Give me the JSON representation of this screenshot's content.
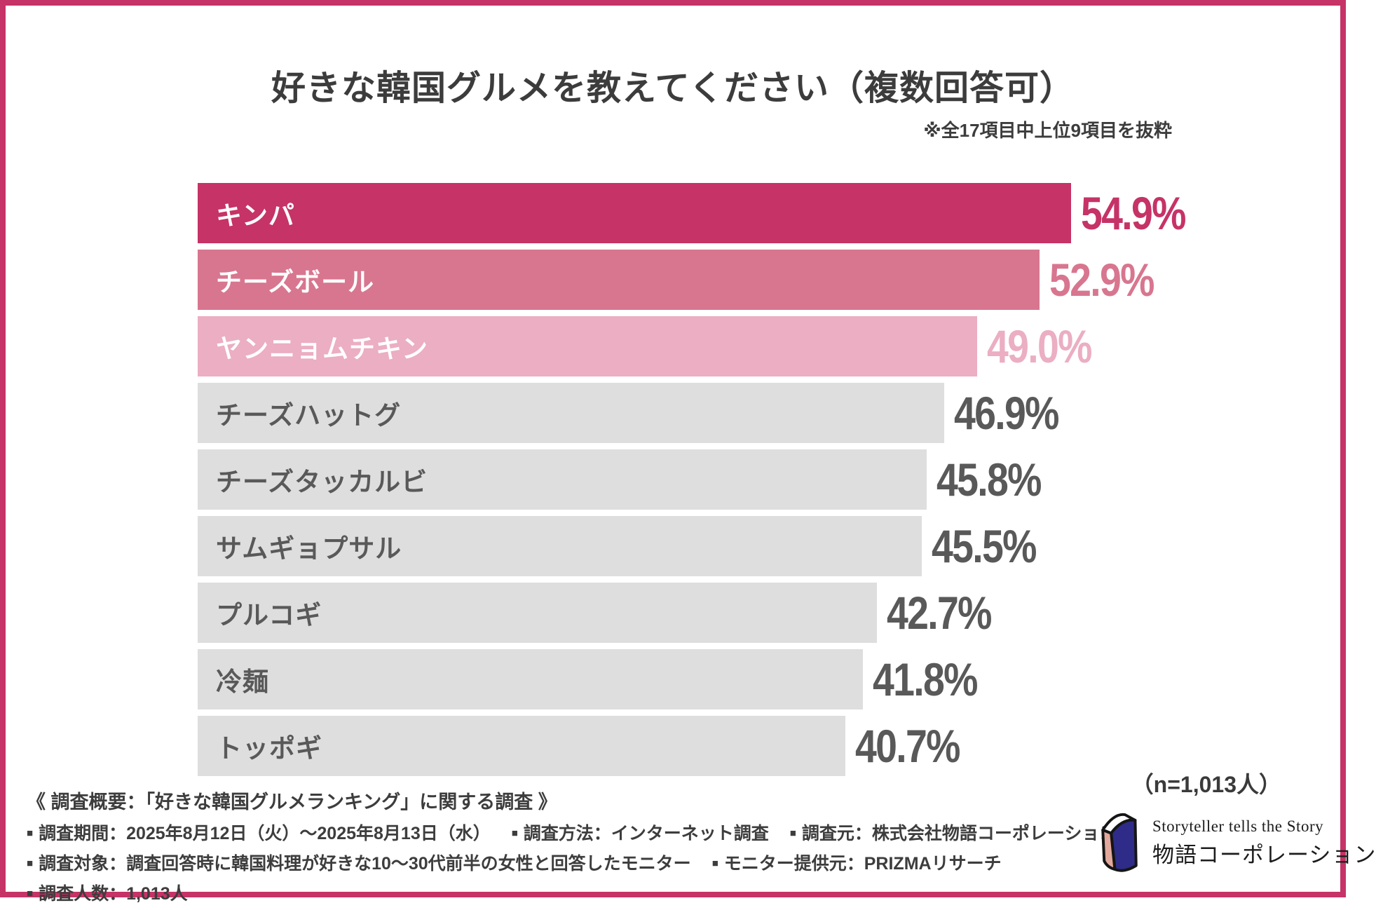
{
  "frame": {
    "border_color": "#C63366"
  },
  "header": {
    "title": "好きな韓国グルメを教えてください（複数回答可）",
    "note": "※全17項目中上位9項目を抜粋"
  },
  "chart_data": {
    "type": "bar",
    "orientation": "horizontal",
    "title": "好きな韓国グルメを教えてください（複数回答可）",
    "subtitle": "※全17項目中上位9項目を抜粋",
    "sample_note": "（n=1,013人）",
    "value_suffix": "%",
    "xlim": [
      0,
      57.7
    ],
    "grid": false,
    "legend": "none",
    "categories": [
      "キンパ",
      "チーズボール",
      "ヤンニョムチキン",
      "チーズハットグ",
      "チーズタッカルビ",
      "サムギョプサル",
      "プルコギ",
      "冷麺",
      "トッポギ"
    ],
    "values": [
      54.9,
      52.9,
      49.0,
      46.9,
      45.8,
      45.5,
      42.7,
      41.8,
      40.7
    ],
    "bar_colors": [
      "#C63366",
      "#D8768F",
      "#EBAEC2",
      "#DEDEDE",
      "#DEDEDE",
      "#DEDEDE",
      "#DEDEDE",
      "#DEDEDE",
      "#DEDEDE"
    ],
    "label_colors": [
      "#FFFFFF",
      "#FFFFFF",
      "#FFFFFF",
      "#595959",
      "#595959",
      "#595959",
      "#595959",
      "#595959",
      "#595959"
    ],
    "value_colors": [
      "#C63366",
      "#D8768F",
      "#EBAEC2",
      "#595959",
      "#595959",
      "#595959",
      "#595959",
      "#595959",
      "#595959"
    ]
  },
  "footer": {
    "bullet": "■",
    "heading": "《 調査概要：「好きな韓国グルメランキング」に関する調査 》",
    "lines": [
      [
        "調査期間：2025年8月12日（火）～2025年8月13日（水）",
        "調査方法：インターネット調査",
        "調査元：株式会社物語コーポレーション"
      ],
      [
        "調査対象：調査回答時に韓国料理が好きな10～30代前半の女性と回答したモニター",
        "モニター提供元：PRIZMAリサーチ"
      ],
      [
        "調査人数：1,013人"
      ]
    ]
  },
  "logo": {
    "icon": "open-book-icon",
    "tagline": "Storyteller tells the Story",
    "company": "物語コーポレーション",
    "colors": {
      "cover": "#2E2C88",
      "spine": "#E2A89C",
      "page": "#FFFFFF",
      "outline": "#151515"
    }
  }
}
